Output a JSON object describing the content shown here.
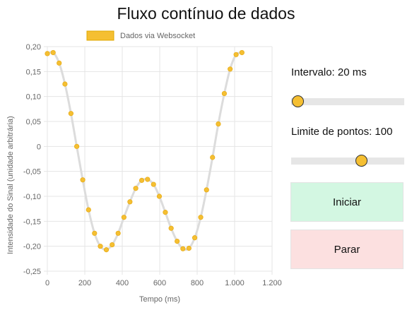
{
  "page": {
    "title": "Fluxo contínuo de dados"
  },
  "controls": {
    "interval_label": "Intervalo: 20 ms",
    "interval_value": 20,
    "interval_slider": {
      "min": 10,
      "max": 1000,
      "value": 20
    },
    "limit_label": "Limite de pontos: 100",
    "limit_value": 100,
    "limit_slider": {
      "min": 10,
      "max": 150,
      "value": 100
    },
    "start_label": "Iniciar",
    "stop_label": "Parar"
  },
  "colors": {
    "point": "#f5bf32",
    "line": "#dcdcdc",
    "start_bg": "#d3f7e2",
    "stop_bg": "#fce0e0"
  },
  "chart_data": {
    "type": "line",
    "title": "",
    "legend": {
      "label": "Dados via Websocket",
      "position": "top"
    },
    "xlabel": "Tempo (ms)",
    "ylabel": "Intensidade do Sinal (unidade arbitrária)",
    "xlim": [
      0,
      1200
    ],
    "ylim": [
      -0.25,
      0.2
    ],
    "x_ticks": [
      "0",
      "200",
      "400",
      "600",
      "800",
      "1.000",
      "1.200"
    ],
    "y_ticks": [
      "0,20",
      "0,15",
      "0,10",
      "0,05",
      "0",
      "-0,05",
      "-0,10",
      "-0,15",
      "-0,20",
      "-0,25"
    ],
    "series": [
      {
        "name": "Dados via Websocket",
        "x": [
          0,
          31,
          63,
          94,
          126,
          157,
          189,
          220,
          252,
          283,
          315,
          346,
          378,
          409,
          441,
          472,
          504,
          535,
          567,
          598,
          630,
          661,
          693,
          724,
          756,
          787,
          819,
          850,
          882,
          913,
          945,
          976,
          1008,
          1039
        ],
        "y": [
          0.186,
          0.188,
          0.167,
          0.125,
          0.066,
          0.0,
          -0.067,
          -0.127,
          -0.174,
          -0.2,
          -0.207,
          -0.197,
          -0.174,
          -0.142,
          -0.111,
          -0.084,
          -0.068,
          -0.066,
          -0.076,
          -0.1,
          -0.132,
          -0.164,
          -0.19,
          -0.205,
          -0.204,
          -0.183,
          -0.142,
          -0.087,
          -0.022,
          0.045,
          0.106,
          0.155,
          0.184,
          0.188
        ]
      }
    ]
  }
}
